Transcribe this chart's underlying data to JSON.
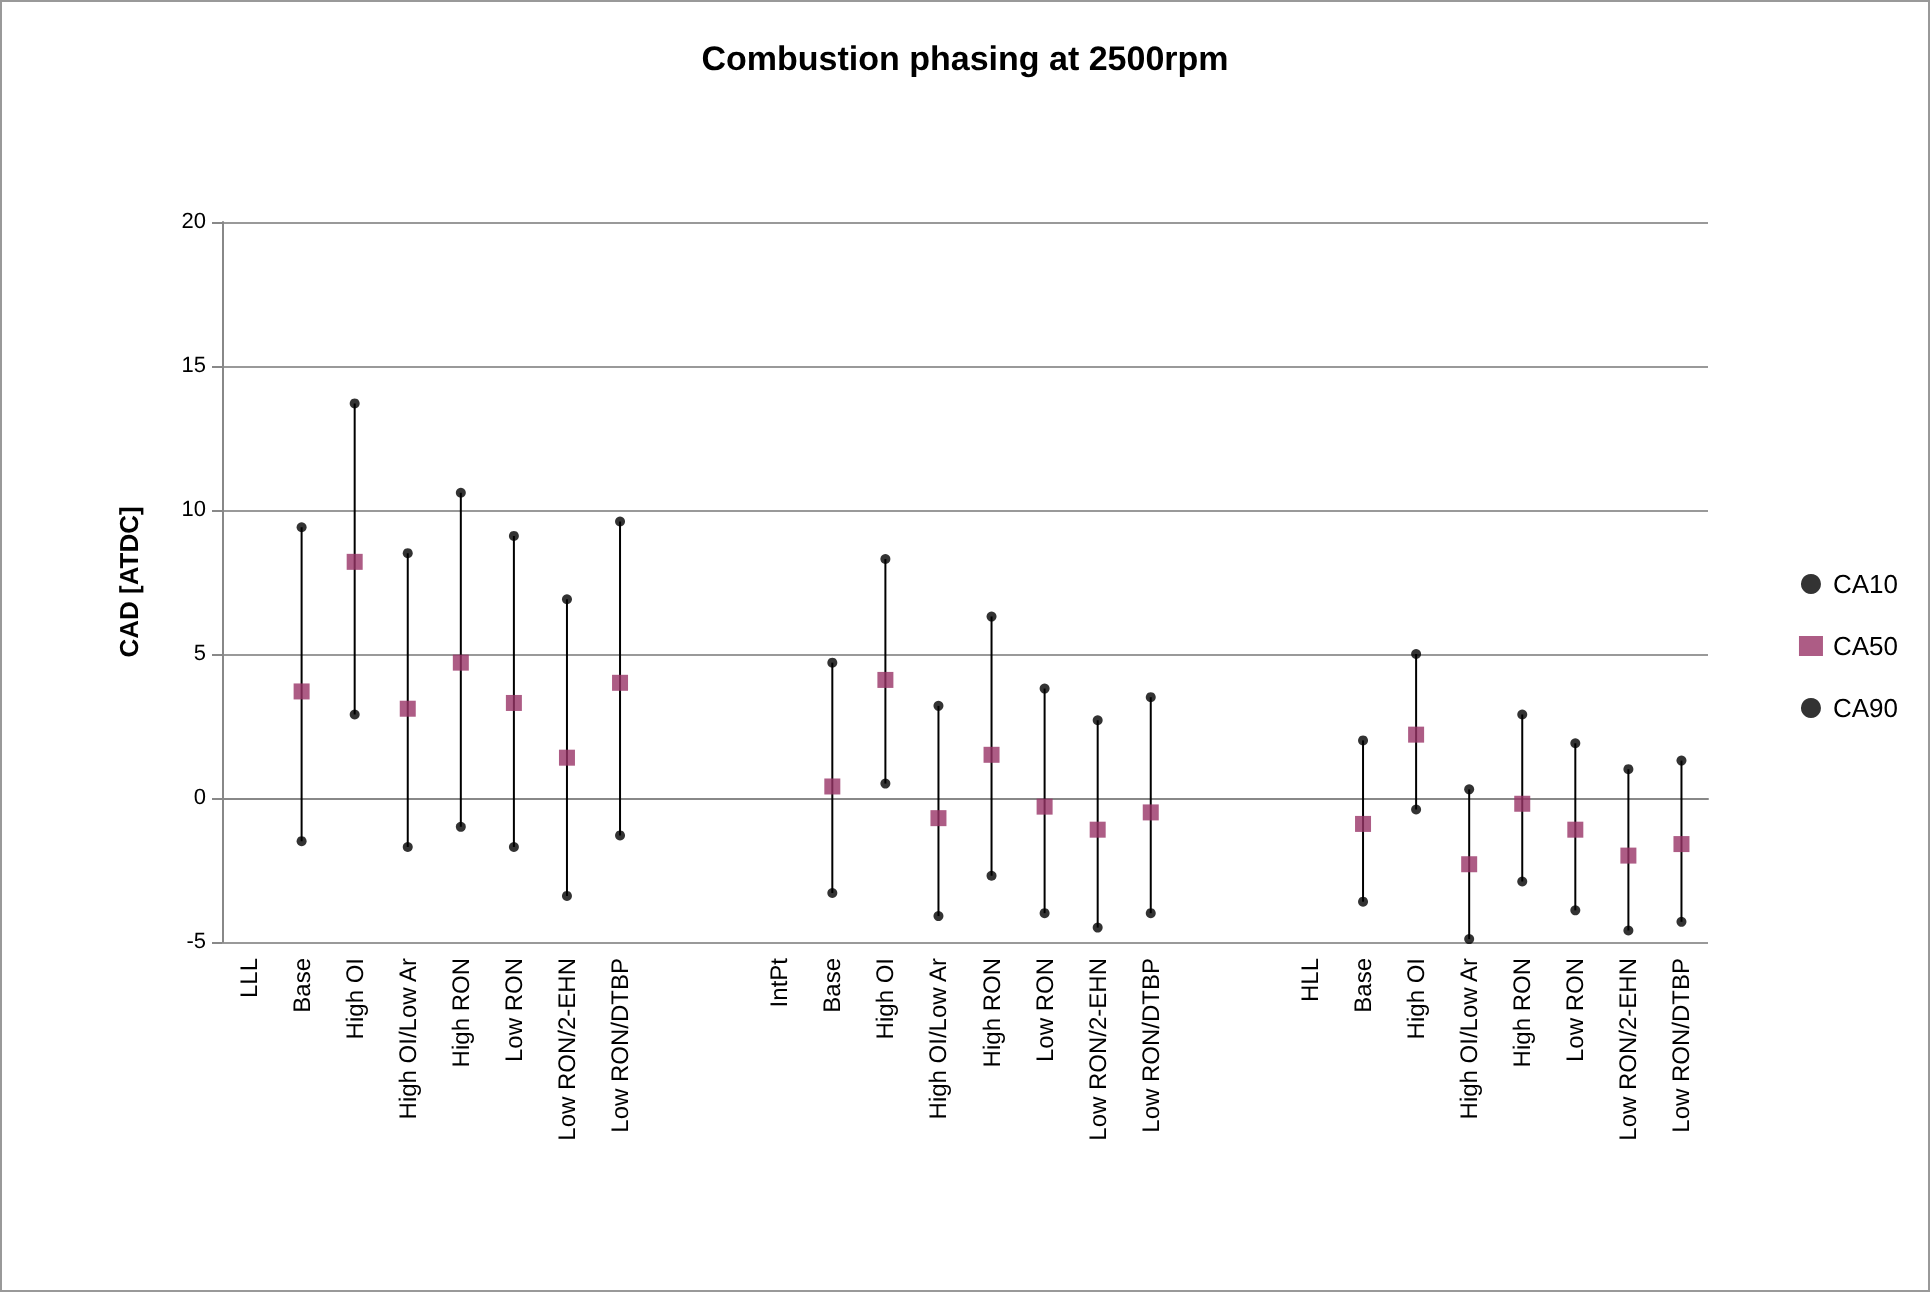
{
  "chart_data": {
    "type": "scatter",
    "title": "Combustion phasing at 2500rpm",
    "ylabel": "CAD [ATDC]",
    "categories": [
      "LLL",
      "Base",
      "High OI",
      "High OI/Low Ar",
      "High RON",
      "Low RON",
      "Low RON/2-EHN",
      "Low RON/DTBP",
      null,
      null,
      "IntPt",
      "Base",
      "High OI",
      "High OI/Low Ar",
      "High RON",
      "Low RON",
      "Low RON/2-EHN",
      "Low RON/DTBP",
      null,
      null,
      "HLL",
      "Base",
      "High OI",
      "High OI/Low Ar",
      "High RON",
      "Low RON",
      "Low RON/2-EHN",
      "Low RON/DTBP"
    ],
    "series": [
      {
        "name": "CA10",
        "color": "#000000",
        "marker": "circle",
        "values": [
          null,
          -1.5,
          2.9,
          -1.7,
          -1.0,
          -1.7,
          -3.4,
          -1.3,
          null,
          null,
          null,
          -3.3,
          0.5,
          -4.1,
          -2.7,
          -4.0,
          -4.5,
          -4.0,
          null,
          null,
          null,
          -3.6,
          -0.4,
          -4.9,
          -2.9,
          -3.9,
          -4.6,
          -4.3
        ]
      },
      {
        "name": "CA50",
        "color": "#993366",
        "marker": "square",
        "values": [
          null,
          3.7,
          8.2,
          3.1,
          4.7,
          3.3,
          1.4,
          4.0,
          null,
          null,
          null,
          0.4,
          4.1,
          -0.7,
          1.5,
          -0.3,
          -1.1,
          -0.5,
          null,
          null,
          null,
          -0.9,
          2.2,
          -2.3,
          -0.2,
          -1.1,
          -2.0,
          -1.6
        ]
      },
      {
        "name": "CA90",
        "color": "#000000",
        "marker": "circle",
        "values": [
          null,
          9.4,
          13.7,
          8.5,
          10.6,
          9.1,
          6.9,
          9.6,
          null,
          null,
          null,
          4.7,
          8.3,
          3.2,
          6.3,
          3.8,
          2.7,
          3.5,
          null,
          null,
          null,
          2.0,
          5.0,
          0.3,
          2.9,
          1.9,
          1.0,
          1.3
        ]
      }
    ],
    "ylim": [
      -5,
      20
    ],
    "yticks": [
      -5,
      0,
      5,
      10,
      15,
      20
    ],
    "grid": "y",
    "legend": "right"
  }
}
